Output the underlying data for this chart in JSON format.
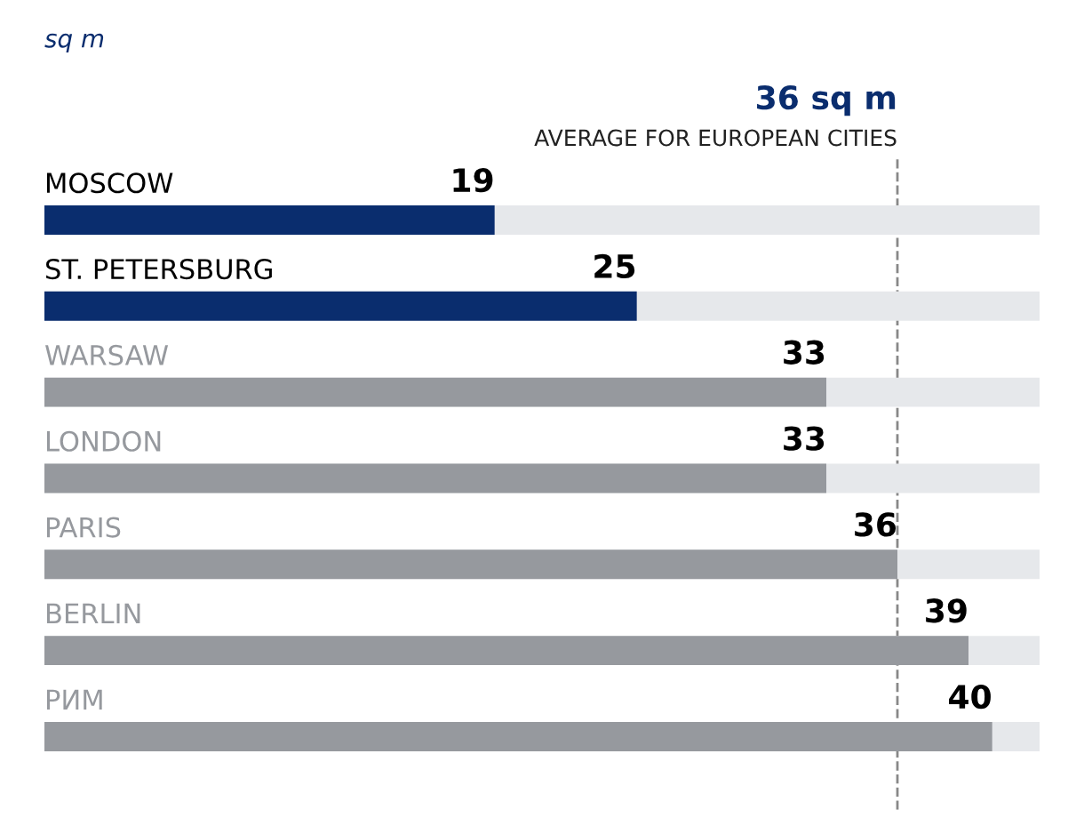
{
  "chart_data": {
    "type": "bar",
    "orientation": "horizontal",
    "subtitle": "sq m",
    "categories": [
      "MOSCOW",
      "ST. PETERSBURG",
      "WARSAW",
      "LONDON",
      "PARIS",
      "BERLIN",
      "РИМ"
    ],
    "values": [
      19,
      25,
      33,
      33,
      36,
      39,
      40
    ],
    "colors": [
      "#0a2d6e",
      "#0a2d6e",
      "#96999e",
      "#96999e",
      "#96999e",
      "#96999e",
      "#96999e"
    ],
    "data_labels": true,
    "xlim": [
      0,
      42
    ],
    "ref_lines": [
      {
        "axis": "x",
        "value": 36,
        "label": "AVERAGE FOR EUROPEAN CITIES",
        "color": "#888888",
        "line_style": "dashed"
      }
    ],
    "annotations": [
      "36 sq m"
    ]
  }
}
